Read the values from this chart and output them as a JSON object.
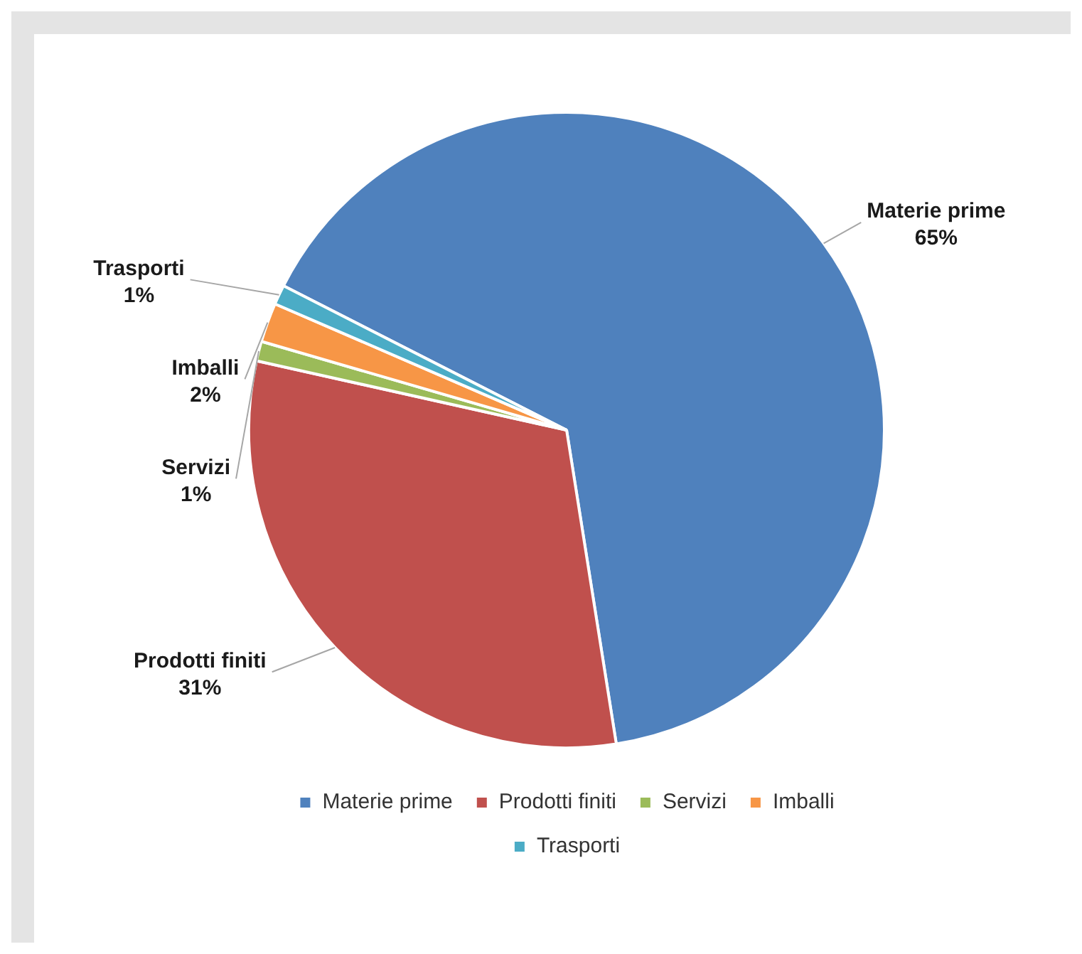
{
  "chart_data": {
    "type": "pie",
    "categories": [
      "Materie prime",
      "Prodotti finiti",
      "Servizi",
      "Imballi",
      "Trasporti"
    ],
    "values": [
      65,
      31,
      1,
      2,
      1
    ],
    "value_labels": [
      "65%",
      "31%",
      "1%",
      "2%",
      "1%"
    ],
    "colors": [
      "#4f81bd",
      "#c0504d",
      "#9bbb59",
      "#f79646",
      "#4bacc6"
    ],
    "legend": "bottom"
  }
}
